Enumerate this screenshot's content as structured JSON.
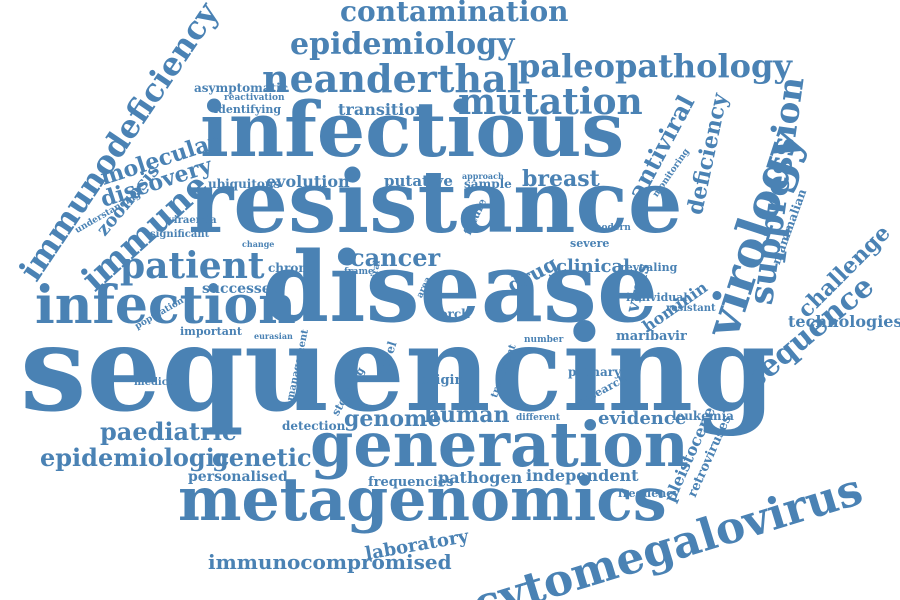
{
  "color": "#4a82b4",
  "words": [
    "contamination",
    "epidemiology",
    "paleopathology",
    "neanderthal",
    "mutation",
    "immunodeficiency",
    "infectious",
    "resistance",
    "disease",
    "sequencing",
    "generation",
    "metagenomics",
    "cytomegalovirus",
    "infection",
    "patient",
    "immune",
    "molecular",
    "discovery",
    "zoonosis",
    "virology",
    "suppression",
    "sequence",
    "challenge",
    "mammalian",
    "deficiency",
    "antiviral",
    "cancer",
    "breast",
    "drug",
    "clinical",
    "virus",
    "hominin",
    "paediatric",
    "epidemiologic",
    "genetic",
    "genome",
    "human",
    "evidence",
    "leukemia",
    "pleistocene",
    "retroviruses",
    "independent",
    "frequency",
    "frequencies",
    "pathogen",
    "personalised",
    "laboratory",
    "immunocompromised",
    "technologies",
    "maribavir",
    "transition",
    "evolution",
    "putative",
    "sample",
    "ubiquitous",
    "identifying",
    "reactivation",
    "asymptomatic",
    "successes",
    "important",
    "population",
    "medicine",
    "chronic",
    "detection",
    "origin",
    "primary",
    "research",
    "revealing",
    "individual",
    "resistant",
    "torch",
    "novel",
    "viraemia",
    "significant",
    "understanding",
    "modern",
    "severe",
    "future",
    "approach",
    "monitoring",
    "management",
    "stopping",
    "treatment",
    "number",
    "different",
    "frame",
    "viral",
    "area",
    "eurasian",
    "change"
  ]
}
